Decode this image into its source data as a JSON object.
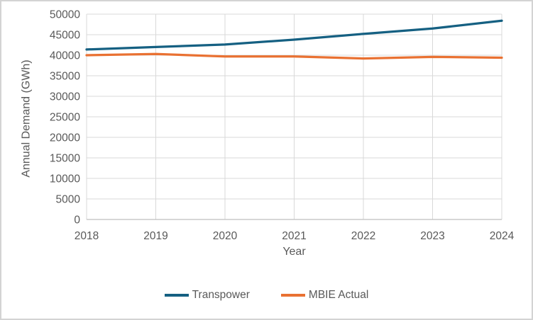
{
  "window": {
    "background": "#FFFFFF",
    "border_color": "#D3D3D3"
  },
  "chart_data": {
    "type": "line",
    "title": "",
    "xlabel": "Year",
    "ylabel": "Annual Demand (GWh)",
    "categories": [
      "2018",
      "2019",
      "2020",
      "2021",
      "2022",
      "2023",
      "2024"
    ],
    "series": [
      {
        "name": "Transpower",
        "color": "#156082",
        "values": [
          41400,
          42000,
          42600,
          43800,
          45200,
          46500,
          48400
        ]
      },
      {
        "name": "MBIE Actual",
        "color": "#E97132",
        "values": [
          40000,
          40300,
          39700,
          39700,
          39200,
          39600,
          39400
        ]
      }
    ],
    "ylim": [
      0,
      50000
    ],
    "ytick_step": 5000,
    "grid": true,
    "legend_position": "bottom",
    "gridline_color": "#D9D9D9",
    "axis_line_color": "#BFBFBF",
    "label_color": "#595959"
  }
}
